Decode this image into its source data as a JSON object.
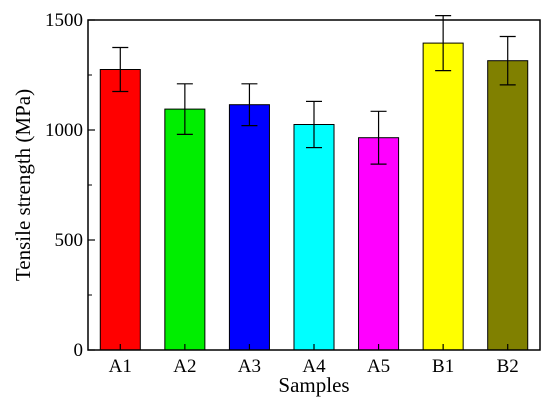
{
  "chart_data": {
    "type": "bar",
    "title": "",
    "xlabel": "Samples",
    "ylabel": "Tensile strength (MPa)",
    "ylim": [
      0,
      1500
    ],
    "yticks": [
      0,
      500,
      1000,
      1500
    ],
    "grid": false,
    "categories": [
      "A1",
      "A2",
      "A3",
      "A4",
      "A5",
      "B1",
      "B2"
    ],
    "values": [
      1275,
      1095,
      1115,
      1025,
      965,
      1395,
      1315
    ],
    "errors": [
      100,
      115,
      95,
      105,
      120,
      125,
      110
    ],
    "colors": [
      "#ff0000",
      "#00ee00",
      "#0000ff",
      "#00ffff",
      "#ff00ff",
      "#ffff00",
      "#808000"
    ]
  }
}
